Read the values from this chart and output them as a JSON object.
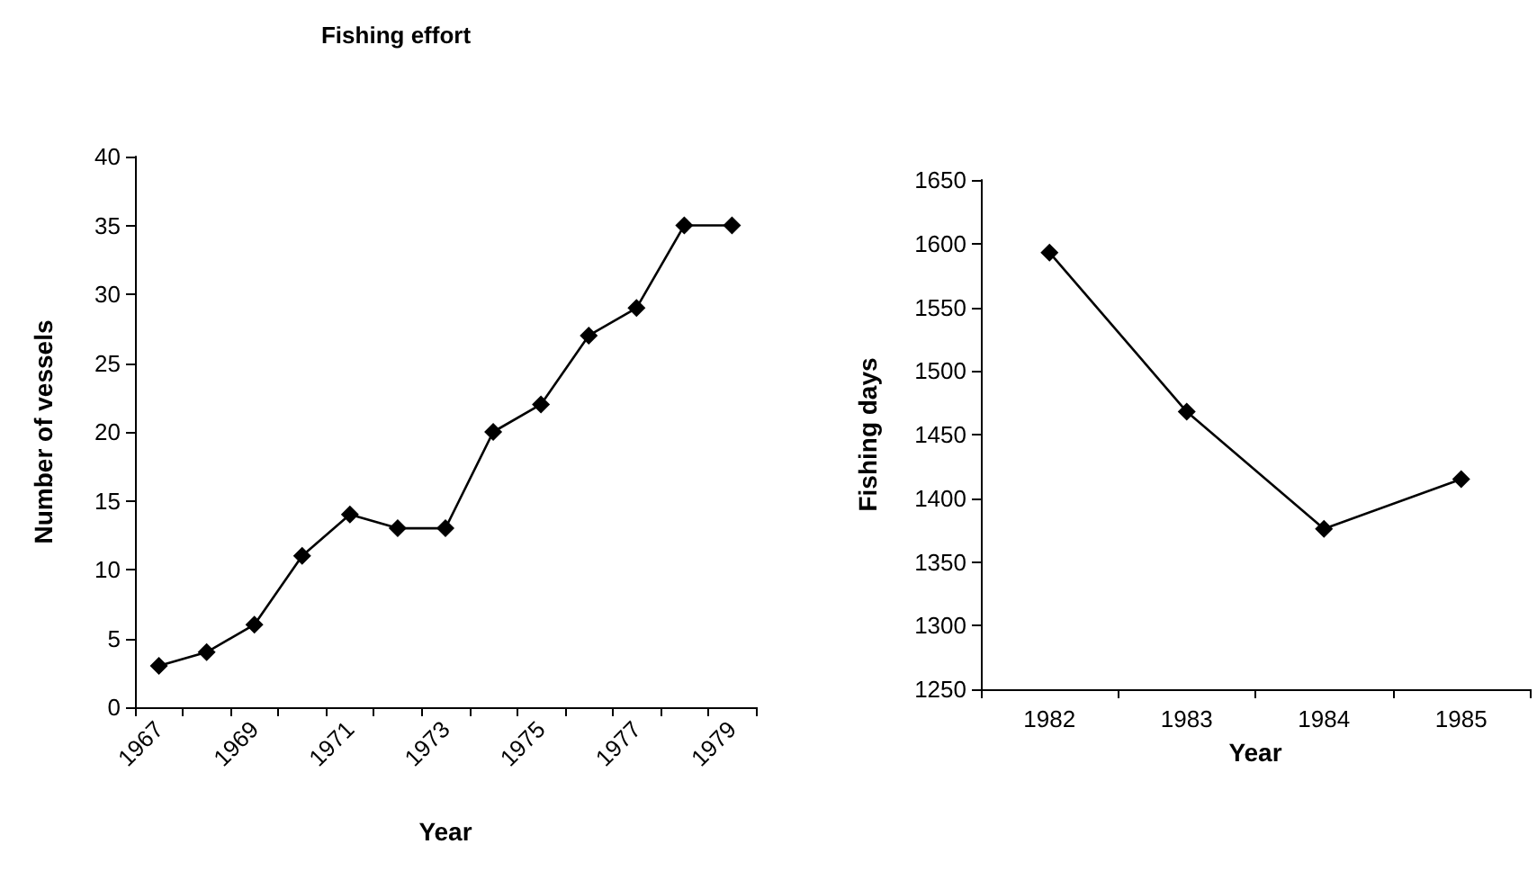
{
  "chart_data": [
    {
      "type": "line",
      "title": "Fishing effort",
      "xlabel": "Year",
      "ylabel": "Number of vessels",
      "categories": [
        "1967",
        null,
        "1969",
        null,
        "1971",
        null,
        "1973",
        null,
        "1975",
        null,
        "1977",
        null,
        "1979"
      ],
      "series": [
        {
          "color": "#000000",
          "values": [
            3,
            4,
            6,
            11,
            14,
            13,
            13,
            20,
            22,
            27,
            29,
            35,
            35
          ]
        }
      ],
      "ylim": [
        0,
        40
      ],
      "yticks": [
        0,
        5,
        10,
        15,
        20,
        25,
        30,
        35,
        40
      ],
      "grid": false,
      "marker": "diamond",
      "line_style": "solid"
    },
    {
      "type": "line",
      "xlabel": "Year",
      "ylabel": "Fishing days",
      "categories": [
        "1982",
        "1983",
        "1984",
        "1985"
      ],
      "series": [
        {
          "color": "#000000",
          "values": [
            1593,
            1468,
            1376,
            1415
          ]
        }
      ],
      "ylim": [
        1250,
        1650
      ],
      "yticks": [
        1250,
        1300,
        1350,
        1400,
        1450,
        1500,
        1550,
        1600,
        1650
      ],
      "grid": false,
      "marker": "diamond",
      "line_style": "solid"
    }
  ]
}
